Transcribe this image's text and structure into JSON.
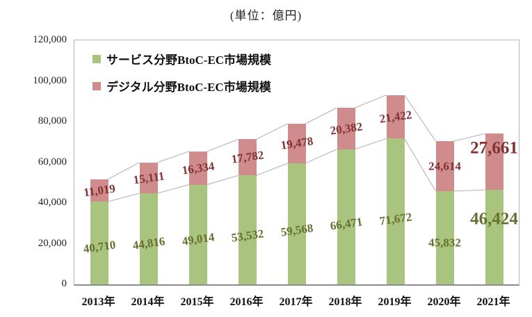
{
  "chart_data": {
    "type": "bar",
    "stacked": true,
    "unit_note": "(単位：億円)",
    "categories": [
      "2013年",
      "2014年",
      "2015年",
      "2016年",
      "2017年",
      "2018年",
      "2019年",
      "2020年",
      "2021年"
    ],
    "series": [
      {
        "name": "サービス分野BtoC-EC市場規模",
        "values": [
          40710,
          44816,
          49014,
          53532,
          59568,
          66471,
          71672,
          45832,
          46424
        ],
        "color": "#a9c47e",
        "label_color": "#66702d"
      },
      {
        "name": "デジタル分野BtoC-EC市場規模",
        "values": [
          11019,
          15111,
          16334,
          17782,
          19478,
          20382,
          21422,
          24614,
          27661
        ],
        "color": "#d08b8c",
        "label_color": "#823231"
      }
    ],
    "ylim": [
      0,
      120000
    ],
    "ytick_step": 20000,
    "ytick_labels": [
      "0",
      "20,000",
      "40,000",
      "60,000",
      "80,000",
      "100,000",
      "120,000"
    ],
    "grid": false,
    "plot_border": true,
    "series_lines": true,
    "legend_position": "top-left-inside",
    "emphasized_category_index": 8,
    "line_color": "#b9b9b9"
  }
}
